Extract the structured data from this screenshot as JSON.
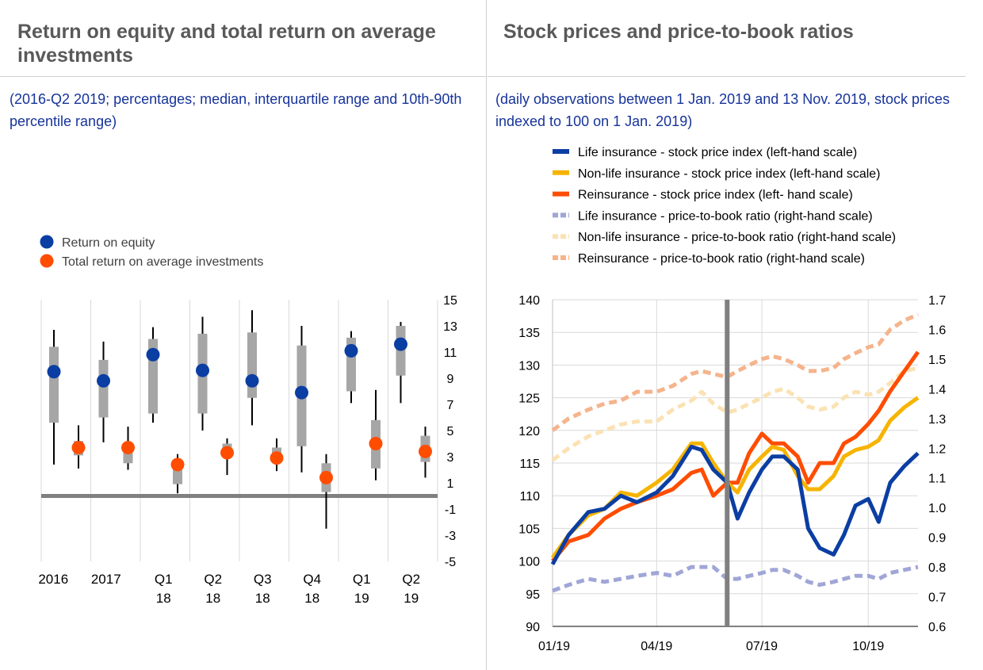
{
  "left_panel": {
    "title": "Return on equity and total return on average investments",
    "subtitle": "(2016-Q2 2019; percentages; median, interquartile range and 10th-90th percentile range)"
  },
  "right_panel": {
    "title": "Stock prices and price-to-book ratios",
    "subtitle": "(daily observations between 1 Jan. 2019 and 13 Nov. 2019, stock prices indexed to 100 on 1 Jan. 2019)"
  },
  "colors": {
    "life_price": "#0b3ea3",
    "nonlife_price": "#f6b400",
    "re_price": "#ff4d00",
    "life_pb": "#a0a6d6",
    "nonlife_pb": "#fbe2b3",
    "re_pb": "#f5b48c",
    "roe_dot": "#0b3ea3",
    "trai_dot": "#ff4d00",
    "box": "#a6a6a6",
    "whisker": "#000000",
    "zero_line": "#808080",
    "text": "#000000"
  },
  "chart_data": [
    {
      "type": "box",
      "legend": [
        "Return on equity",
        "Total return on average investments"
      ],
      "legend_placement": "top-left",
      "categories": [
        "2016",
        "2017",
        "Q1 18",
        "Q2 18",
        "Q3 18",
        "Q4 18",
        "Q1 19",
        "Q2 19"
      ],
      "category_labels": [
        [
          "2016"
        ],
        [
          "2017"
        ],
        [
          "Q1",
          "18"
        ],
        [
          "Q2",
          "18"
        ],
        [
          "Q3",
          "18"
        ],
        [
          "Q4",
          "18"
        ],
        [
          "Q1",
          "19"
        ],
        [
          "Q2",
          "19"
        ]
      ],
      "ylim": [
        -5,
        15
      ],
      "yticks": [
        15,
        13,
        11,
        9,
        7,
        5,
        3,
        1,
        -1,
        -3,
        -5
      ],
      "yaxis_side": "right",
      "series": [
        {
          "name": "Return on equity",
          "p10": [
            2.4,
            4.1,
            5.6,
            5.0,
            5.4,
            1.8,
            7.1,
            7.1
          ],
          "p25": [
            5.6,
            6.0,
            6.3,
            6.3,
            7.5,
            3.8,
            8.0,
            9.2
          ],
          "median": [
            9.5,
            8.8,
            10.8,
            9.6,
            8.8,
            7.9,
            11.1,
            11.6
          ],
          "p75": [
            11.4,
            10.4,
            12.0,
            12.4,
            12.5,
            11.5,
            12.1,
            13.0
          ],
          "p90": [
            12.7,
            11.8,
            12.9,
            13.7,
            14.2,
            13.0,
            12.6,
            13.3
          ]
        },
        {
          "name": "Total return on average investments",
          "p10": [
            2.1,
            2.0,
            0.2,
            1.6,
            1.9,
            -2.5,
            1.2,
            1.4
          ],
          "p25": [
            3.1,
            2.5,
            0.9,
            3.1,
            2.6,
            0.3,
            2.1,
            2.6
          ],
          "median": [
            3.7,
            3.7,
            2.4,
            3.3,
            2.9,
            1.4,
            4.0,
            3.4
          ],
          "p75": [
            4.2,
            3.9,
            2.7,
            4.0,
            3.7,
            2.5,
            5.8,
            4.6
          ],
          "p90": [
            5.4,
            5.3,
            3.2,
            4.4,
            4.4,
            3.2,
            8.1,
            5.3
          ]
        }
      ]
    },
    {
      "type": "line",
      "x_start": "2019-01-01",
      "x_end": "2019-11-13",
      "xticks": [
        "01/19",
        "04/19",
        "07/19",
        "10/19"
      ],
      "ylim_left": [
        90,
        140
      ],
      "yticks_left": [
        140,
        135,
        130,
        125,
        120,
        115,
        110,
        105,
        100,
        95,
        90
      ],
      "ylim_right": [
        0.6,
        1.7
      ],
      "yticks_right": [
        "1.7",
        "1.6",
        "1.5",
        "1.4",
        "1.3",
        "1.2",
        "1.1",
        "1.0",
        "0.9",
        "0.8",
        "0.7",
        "0.6"
      ],
      "vertical_marker_date": "2019-06-01",
      "legend_placement": "top",
      "series": [
        {
          "name": "Life insurance - stock price index (left-hand scale)",
          "axis": "left",
          "style": "solid",
          "color_key": "life_price",
          "x": [
            "2019-01-01",
            "2019-01-15",
            "2019-02-01",
            "2019-02-15",
            "2019-03-01",
            "2019-03-15",
            "2019-04-01",
            "2019-04-15",
            "2019-05-01",
            "2019-05-10",
            "2019-05-20",
            "2019-06-01",
            "2019-06-10",
            "2019-06-20",
            "2019-07-01",
            "2019-07-10",
            "2019-07-20",
            "2019-08-01",
            "2019-08-10",
            "2019-08-20",
            "2019-09-01",
            "2019-09-10",
            "2019-09-20",
            "2019-10-01",
            "2019-10-10",
            "2019-10-20",
            "2019-11-01",
            "2019-11-13"
          ],
          "y": [
            99.5,
            104,
            107.5,
            108,
            110,
            109,
            110.5,
            113,
            117.5,
            117,
            114,
            112,
            106.5,
            110.5,
            114,
            116,
            116,
            114,
            105,
            102,
            101,
            104,
            108.5,
            109.5,
            106,
            112,
            114.5,
            116.5
          ]
        },
        {
          "name": "Non-life insurance - stock price index (left-hand scale)",
          "axis": "left",
          "style": "solid",
          "color_key": "nonlife_price",
          "x": [
            "2019-01-01",
            "2019-01-15",
            "2019-02-01",
            "2019-02-15",
            "2019-03-01",
            "2019-03-15",
            "2019-04-01",
            "2019-04-15",
            "2019-05-01",
            "2019-05-10",
            "2019-05-20",
            "2019-06-01",
            "2019-06-10",
            "2019-06-20",
            "2019-07-01",
            "2019-07-10",
            "2019-07-20",
            "2019-08-01",
            "2019-08-10",
            "2019-08-20",
            "2019-09-01",
            "2019-09-10",
            "2019-09-20",
            "2019-10-01",
            "2019-10-10",
            "2019-10-20",
            "2019-11-01",
            "2019-11-13"
          ],
          "y": [
            100.5,
            104,
            107,
            108,
            110.5,
            110,
            112,
            114,
            118,
            118,
            115,
            112,
            110.5,
            114,
            116,
            117.5,
            117,
            113,
            111,
            111,
            113,
            116,
            117,
            117.5,
            118.5,
            121.5,
            123.5,
            125
          ]
        },
        {
          "name": "Reinsurance - stock price index (left- hand scale)",
          "axis": "left",
          "style": "solid",
          "color_key": "re_price",
          "x": [
            "2019-01-01",
            "2019-01-15",
            "2019-02-01",
            "2019-02-15",
            "2019-03-01",
            "2019-03-15",
            "2019-04-01",
            "2019-04-15",
            "2019-05-01",
            "2019-05-10",
            "2019-05-20",
            "2019-06-01",
            "2019-06-10",
            "2019-06-20",
            "2019-07-01",
            "2019-07-10",
            "2019-07-20",
            "2019-08-01",
            "2019-08-10",
            "2019-08-20",
            "2019-09-01",
            "2019-09-10",
            "2019-09-20",
            "2019-10-01",
            "2019-10-10",
            "2019-10-20",
            "2019-11-01",
            "2019-11-13"
          ],
          "y": [
            100,
            103,
            104,
            106.5,
            108,
            109,
            110,
            111,
            113.5,
            114,
            110,
            112,
            112,
            116.5,
            119.5,
            118,
            118,
            116,
            112,
            115,
            115,
            118,
            119,
            121,
            123,
            126,
            129,
            132
          ]
        },
        {
          "name": "Life insurance - price-to-book ratio (right-hand scale)",
          "axis": "right",
          "style": "dashed",
          "color_key": "life_pb",
          "x": [
            "2019-01-01",
            "2019-01-15",
            "2019-02-01",
            "2019-02-15",
            "2019-03-01",
            "2019-03-15",
            "2019-04-01",
            "2019-04-15",
            "2019-05-01",
            "2019-05-10",
            "2019-05-20",
            "2019-06-01",
            "2019-06-10",
            "2019-06-20",
            "2019-07-01",
            "2019-07-10",
            "2019-07-20",
            "2019-08-01",
            "2019-08-10",
            "2019-08-20",
            "2019-09-01",
            "2019-09-10",
            "2019-09-20",
            "2019-10-01",
            "2019-10-10",
            "2019-10-20",
            "2019-11-01",
            "2019-11-13"
          ],
          "y": [
            0.72,
            0.74,
            0.76,
            0.75,
            0.76,
            0.77,
            0.78,
            0.77,
            0.8,
            0.8,
            0.8,
            0.76,
            0.76,
            0.77,
            0.78,
            0.79,
            0.79,
            0.77,
            0.75,
            0.74,
            0.75,
            0.76,
            0.77,
            0.77,
            0.76,
            0.78,
            0.79,
            0.8
          ]
        },
        {
          "name": "Non-life insurance - price-to-book ratio (right-hand scale)",
          "axis": "right",
          "style": "dashed",
          "color_key": "nonlife_pb",
          "x": [
            "2019-01-01",
            "2019-01-15",
            "2019-02-01",
            "2019-02-15",
            "2019-03-01",
            "2019-03-15",
            "2019-04-01",
            "2019-04-15",
            "2019-05-01",
            "2019-05-10",
            "2019-05-20",
            "2019-06-01",
            "2019-06-10",
            "2019-06-20",
            "2019-07-01",
            "2019-07-10",
            "2019-07-20",
            "2019-08-01",
            "2019-08-10",
            "2019-08-20",
            "2019-09-01",
            "2019-09-10",
            "2019-09-20",
            "2019-10-01",
            "2019-10-10",
            "2019-10-20",
            "2019-11-01",
            "2019-11-13"
          ],
          "y": [
            1.16,
            1.2,
            1.24,
            1.26,
            1.28,
            1.29,
            1.29,
            1.33,
            1.36,
            1.39,
            1.35,
            1.32,
            1.33,
            1.35,
            1.37,
            1.39,
            1.4,
            1.37,
            1.34,
            1.33,
            1.34,
            1.37,
            1.39,
            1.38,
            1.39,
            1.42,
            1.46,
            1.47
          ]
        },
        {
          "name": "Reinsurance - price-to-book ratio (right-hand scale)",
          "axis": "right",
          "style": "dashed",
          "color_key": "re_pb",
          "x": [
            "2019-01-01",
            "2019-01-15",
            "2019-02-01",
            "2019-02-15",
            "2019-03-01",
            "2019-03-15",
            "2019-04-01",
            "2019-04-15",
            "2019-05-01",
            "2019-05-10",
            "2019-05-20",
            "2019-06-01",
            "2019-06-10",
            "2019-06-20",
            "2019-07-01",
            "2019-07-10",
            "2019-07-20",
            "2019-08-01",
            "2019-08-10",
            "2019-08-20",
            "2019-09-01",
            "2019-09-10",
            "2019-09-20",
            "2019-10-01",
            "2019-10-10",
            "2019-10-20",
            "2019-11-01",
            "2019-11-13"
          ],
          "y": [
            1.26,
            1.3,
            1.33,
            1.35,
            1.36,
            1.39,
            1.39,
            1.41,
            1.45,
            1.46,
            1.45,
            1.44,
            1.46,
            1.48,
            1.5,
            1.51,
            1.5,
            1.48,
            1.46,
            1.46,
            1.47,
            1.5,
            1.52,
            1.54,
            1.55,
            1.6,
            1.63,
            1.65
          ]
        }
      ]
    }
  ]
}
